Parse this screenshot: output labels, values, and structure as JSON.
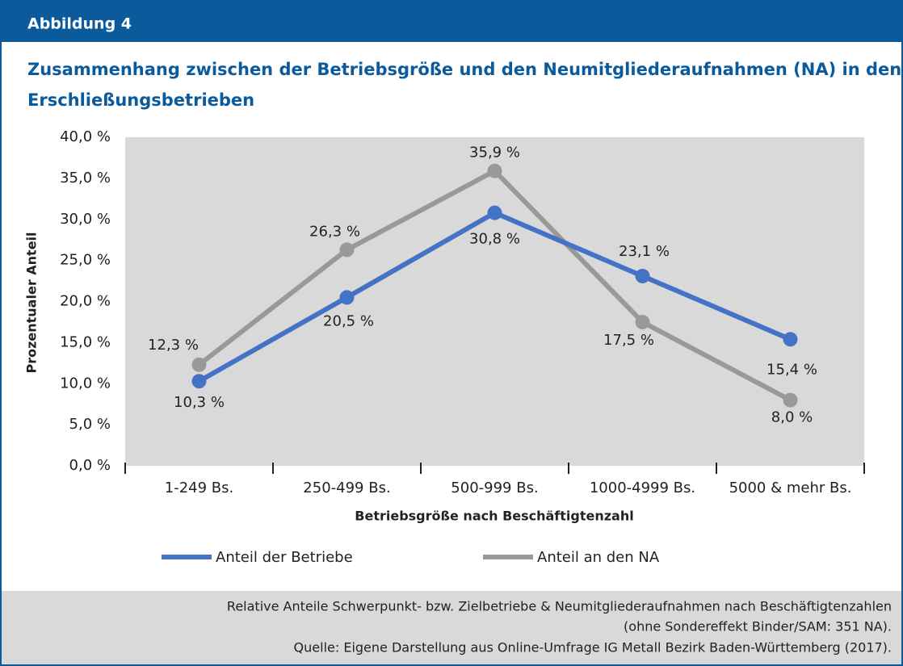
{
  "header": "Abbildung 4",
  "chart_data": {
    "type": "line",
    "title": "Zusammenhang zwischen der Betriebsgröße und den Neumitgliederaufnahmen (NA) in den Erschließungsbetrieben",
    "title_lines": [
      "Zusammenhang zwischen der Betriebsgröße und den Neumitgliederaufnahmen (NA) in den",
      "Erschließungsbetrieben"
    ],
    "x_label": "Betriebsgröße nach Beschäftigtenzahl",
    "y_label": "Prozentualer Anteil",
    "categories": [
      "1-249 Bs.",
      "250-499 Bs.",
      "500-999 Bs.",
      "1000-4999 Bs.",
      "5000 & mehr Bs."
    ],
    "series": [
      {
        "name": "Anteil der Betriebe",
        "color": "#4472c4",
        "values": [
          10.3,
          20.5,
          30.8,
          23.1,
          15.4
        ],
        "value_labels": [
          "10,3 %",
          "20,5 %",
          "30,8 %",
          "23,1 %",
          "15,4 %"
        ]
      },
      {
        "name": "Anteil an den NA",
        "color": "#999999",
        "values": [
          12.3,
          26.3,
          35.9,
          17.5,
          8.0
        ],
        "value_labels": [
          "12,3 %",
          "26,3 %",
          "35,9 %",
          "17,5 %",
          "8,0 %"
        ]
      }
    ],
    "ylim": [
      0,
      40
    ],
    "yticks": [
      {
        "value": 0,
        "label": "0,0 %"
      },
      {
        "value": 5,
        "label": "5,0 %"
      },
      {
        "value": 10,
        "label": "10,0 %"
      },
      {
        "value": 15,
        "label": "15,0 %"
      },
      {
        "value": 20,
        "label": "20,0 %"
      },
      {
        "value": 25,
        "label": "25,0 %"
      },
      {
        "value": 30,
        "label": "30,0 %"
      },
      {
        "value": 35,
        "label": "35,0 %"
      },
      {
        "value": 40,
        "label": "40,0 %"
      }
    ]
  },
  "footer": [
    "Relative Anteile Schwerpunkt- bzw. Zielbetriebe & Neumitgliederaufnahmen nach Beschäftigtenzahlen",
    "(ohne Sondereffekt Binder/SAM: 351 NA).",
    "Quelle: Eigene Darstellung aus Online-Umfrage IG Metall Bezirk Baden-Württemberg (2017)."
  ]
}
